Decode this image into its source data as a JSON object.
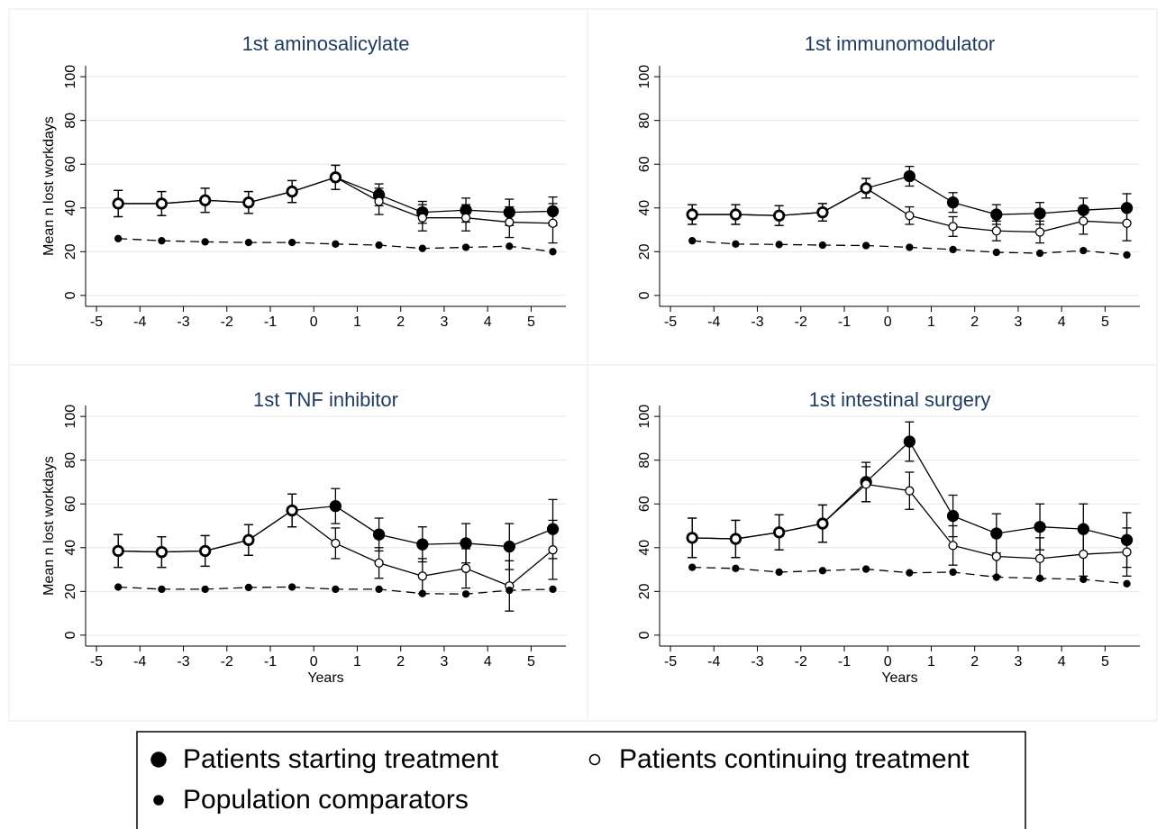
{
  "chart_data": [
    {
      "type": "line",
      "title": "1st aminosalicylate",
      "ylabel": "Mean n lost workdays",
      "x": [
        -4.5,
        -3.5,
        -2.5,
        -1.5,
        -0.5,
        0.5,
        1.5,
        2.5,
        3.5,
        4.5,
        5.5
      ],
      "xlim": [
        -5.25,
        5.8
      ],
      "xticks": [
        -5,
        -4,
        -3,
        -2,
        -1,
        0,
        1,
        2,
        3,
        4,
        5
      ],
      "ylim": [
        -5,
        105
      ],
      "yticks": [
        0,
        20,
        40,
        60,
        80,
        100
      ],
      "grid": true,
      "series": [
        {
          "name": "Patients starting treatment",
          "color": "#000000",
          "marker": "large-filled",
          "line": "solid",
          "values": [
            42,
            42,
            43.5,
            42.5,
            47.5,
            54,
            46,
            38,
            39,
            38,
            38.5
          ],
          "errors": [
            6,
            5.5,
            5.5,
            5,
            5,
            5.5,
            5,
            5,
            5.5,
            6,
            6.5
          ]
        },
        {
          "name": "Patients continuing treatment",
          "color": "#000000",
          "marker": "small-open",
          "line": "solid",
          "values": [
            42,
            42,
            43.5,
            42.5,
            47.5,
            54,
            43,
            35.5,
            35.5,
            33.5,
            33
          ],
          "errors": [
            6,
            5.5,
            5.5,
            5,
            5,
            5.5,
            6,
            6,
            6,
            7,
            9
          ]
        },
        {
          "name": "Population comparators",
          "color": "#000000",
          "marker": "small-filled",
          "line": "dashed",
          "values": [
            26,
            25,
            24.5,
            24.2,
            24.2,
            23.5,
            23,
            21.5,
            22,
            22.5,
            20
          ]
        }
      ]
    },
    {
      "type": "line",
      "title": "1st immunomodulator",
      "x": [
        -4.5,
        -3.5,
        -2.5,
        -1.5,
        -0.5,
        0.5,
        1.5,
        2.5,
        3.5,
        4.5,
        5.5
      ],
      "xlim": [
        -5.25,
        5.8
      ],
      "xticks": [
        -5,
        -4,
        -3,
        -2,
        -1,
        0,
        1,
        2,
        3,
        4,
        5
      ],
      "ylim": [
        -5,
        105
      ],
      "yticks": [
        0,
        20,
        40,
        60,
        80,
        100
      ],
      "grid": true,
      "series": [
        {
          "name": "Patients starting treatment",
          "color": "#000000",
          "marker": "large-filled",
          "line": "solid",
          "values": [
            37,
            37,
            36.5,
            38,
            49,
            54.5,
            42.5,
            37,
            37.5,
            39,
            40
          ],
          "errors": [
            4.5,
            4.5,
            4.5,
            4,
            4.5,
            4.5,
            4.5,
            4.5,
            5,
            5.5,
            6.5
          ]
        },
        {
          "name": "Patients continuing treatment",
          "color": "#000000",
          "marker": "small-open",
          "line": "solid",
          "values": [
            37,
            37,
            36.5,
            38,
            49,
            36.5,
            31.5,
            29.5,
            29,
            34,
            33
          ],
          "errors": [
            4.5,
            4.5,
            4.5,
            4,
            4.5,
            4,
            4.5,
            4.5,
            5,
            6,
            8
          ]
        },
        {
          "name": "Population comparators",
          "color": "#000000",
          "marker": "small-filled",
          "line": "dashed",
          "values": [
            25,
            23.5,
            23.3,
            23,
            22.8,
            22,
            21,
            19.7,
            19.3,
            20.5,
            18.5
          ]
        }
      ]
    },
    {
      "type": "line",
      "title": "1st TNF inhibitor",
      "ylabel": "Mean n lost workdays",
      "xlabel": "Years",
      "x": [
        -4.5,
        -3.5,
        -2.5,
        -1.5,
        -0.5,
        0.5,
        1.5,
        2.5,
        3.5,
        4.5,
        5.5
      ],
      "xlim": [
        -5.25,
        5.8
      ],
      "xticks": [
        -5,
        -4,
        -3,
        -2,
        -1,
        0,
        1,
        2,
        3,
        4,
        5
      ],
      "ylim": [
        -5,
        105
      ],
      "yticks": [
        0,
        20,
        40,
        60,
        80,
        100
      ],
      "grid": true,
      "series": [
        {
          "name": "Patients starting treatment",
          "color": "#000000",
          "marker": "large-filled",
          "line": "solid",
          "values": [
            38.5,
            38,
            38.5,
            43.5,
            57,
            59,
            46,
            41.5,
            42,
            40.5,
            48.5
          ],
          "errors": [
            7.5,
            7,
            7,
            7,
            7.5,
            8,
            7.5,
            8,
            9,
            10.5,
            13.5
          ]
        },
        {
          "name": "Patients continuing treatment",
          "color": "#000000",
          "marker": "small-open",
          "line": "solid",
          "values": [
            38.5,
            38,
            38.5,
            43.5,
            57,
            42,
            33,
            27,
            30.5,
            22.5,
            39
          ],
          "errors": [
            7.5,
            7,
            7,
            7,
            7.5,
            7,
            7,
            8,
            9,
            11.5,
            13.5
          ]
        },
        {
          "name": "Population comparators",
          "color": "#000000",
          "marker": "small-filled",
          "line": "dashed",
          "values": [
            22,
            21,
            21,
            21.8,
            22,
            21,
            21,
            19,
            18.8,
            20.5,
            21
          ]
        }
      ]
    },
    {
      "type": "line",
      "title": "1st intestinal surgery",
      "xlabel": "Years",
      "x": [
        -4.5,
        -3.5,
        -2.5,
        -1.5,
        -0.5,
        0.5,
        1.5,
        2.5,
        3.5,
        4.5,
        5.5
      ],
      "xlim": [
        -5.25,
        5.8
      ],
      "xticks": [
        -5,
        -4,
        -3,
        -2,
        -1,
        0,
        1,
        2,
        3,
        4,
        5
      ],
      "ylim": [
        -5,
        105
      ],
      "yticks": [
        0,
        20,
        40,
        60,
        80,
        100
      ],
      "grid": true,
      "series": [
        {
          "name": "Patients starting treatment",
          "color": "#000000",
          "marker": "large-filled",
          "line": "solid",
          "values": [
            44.5,
            44,
            47,
            51,
            70,
            88.5,
            54.5,
            46.5,
            49.5,
            48.5,
            43.5
          ],
          "errors": [
            9,
            8.5,
            8,
            8.5,
            9,
            9,
            9.5,
            9,
            10.5,
            11.5,
            12.5
          ]
        },
        {
          "name": "Patients continuing treatment",
          "color": "#000000",
          "marker": "small-open",
          "line": "solid",
          "values": [
            44.5,
            44,
            47,
            51,
            69,
            66,
            41,
            36,
            35,
            37,
            38
          ],
          "errors": [
            9,
            8.5,
            8,
            8.5,
            8,
            8.5,
            9,
            9,
            9.5,
            10,
            11
          ]
        },
        {
          "name": "Population comparators",
          "color": "#000000",
          "marker": "small-filled",
          "line": "dashed",
          "values": [
            31,
            30.5,
            28.8,
            29.5,
            30.2,
            28.5,
            28.8,
            26.5,
            26,
            25.5,
            23.5
          ]
        }
      ]
    }
  ]
}
